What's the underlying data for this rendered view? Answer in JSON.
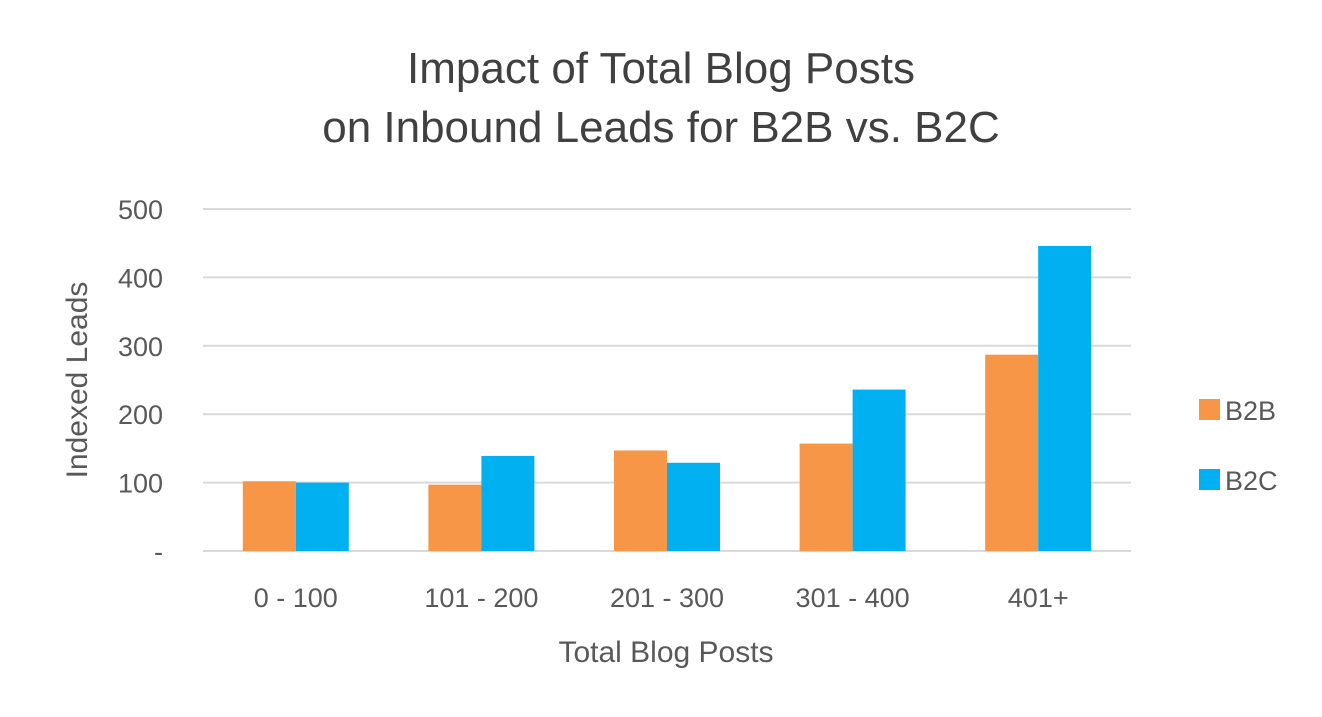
{
  "chart_data": {
    "type": "bar",
    "title_lines": [
      "Impact of Total Blog Posts",
      "on Inbound Leads for B2B vs. B2C"
    ],
    "xlabel": "Total Blog Posts",
    "ylabel": "Indexed Leads",
    "categories": [
      "0 - 100",
      "101 - 200",
      "201 - 300",
      "301 - 400",
      "401+"
    ],
    "series": [
      {
        "name": "B2B",
        "color": "#f79646",
        "values": [
          102,
          97,
          147,
          157,
          287
        ]
      },
      {
        "name": "B2C",
        "color": "#00b0f0",
        "values": [
          100,
          139,
          129,
          236,
          446
        ]
      }
    ],
    "ylim": [
      0,
      500
    ],
    "y_ticks": [
      {
        "value": 0,
        "label": "-"
      },
      {
        "value": 100,
        "label": "100"
      },
      {
        "value": 200,
        "label": "200"
      },
      {
        "value": 300,
        "label": "300"
      },
      {
        "value": 400,
        "label": "400"
      },
      {
        "value": 500,
        "label": "500"
      }
    ],
    "grid": true,
    "legend_position": "right"
  }
}
